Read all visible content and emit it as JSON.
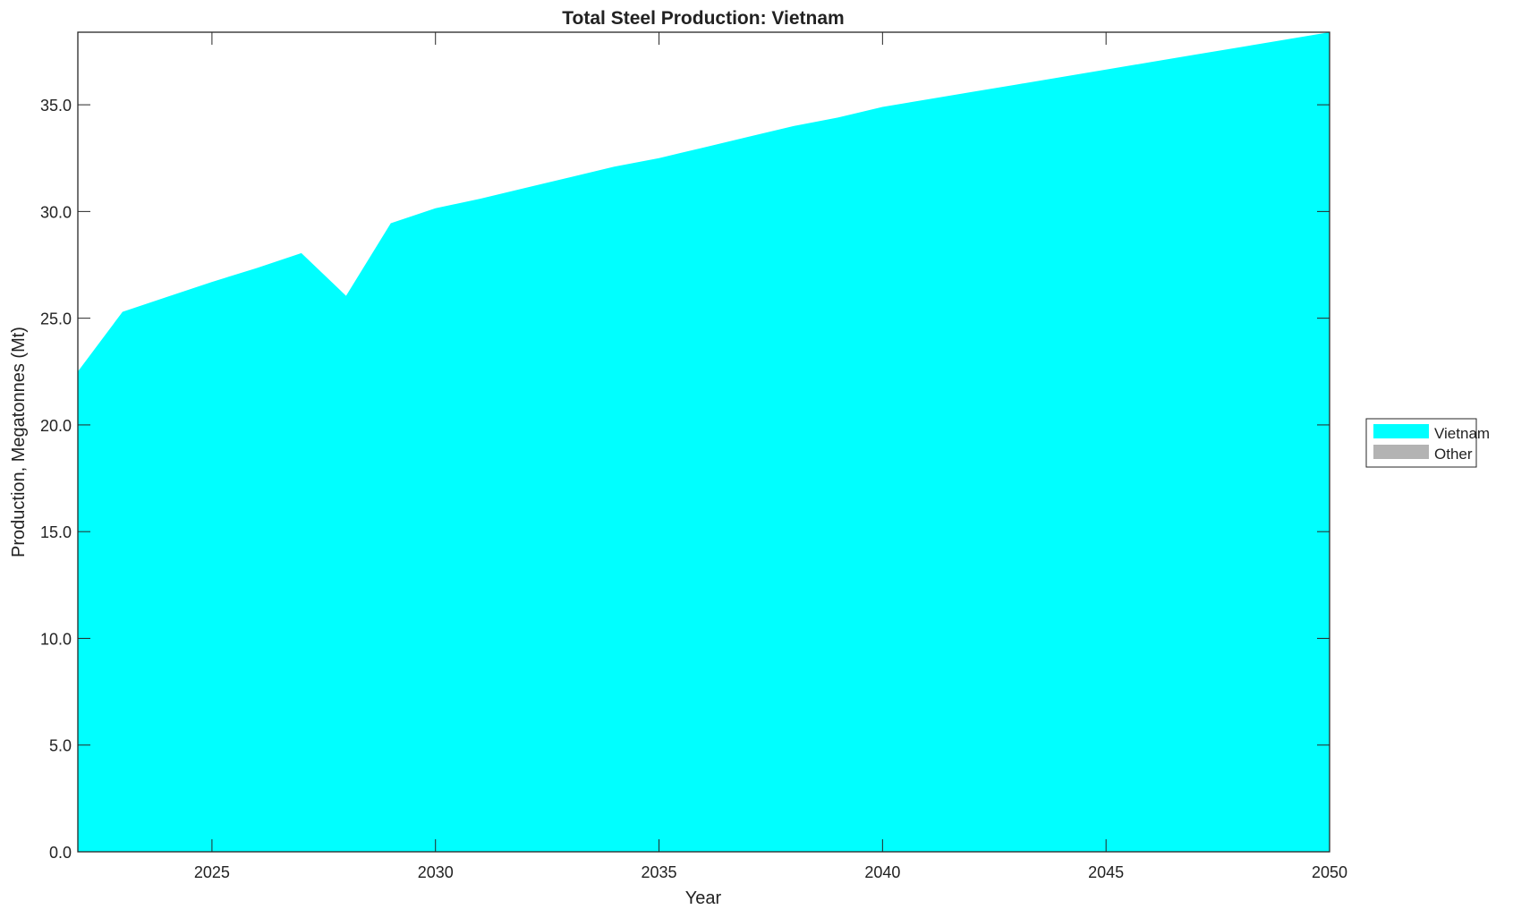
{
  "chart_data": {
    "type": "area",
    "title": "Total Steel Production: Vietnam",
    "xlabel": "Year",
    "ylabel": "Production, Megatonnes (Mt)",
    "xlim": [
      2022,
      2050
    ],
    "ylim": [
      0,
      38.4
    ],
    "xticks": [
      2025,
      2030,
      2035,
      2040,
      2045,
      2050
    ],
    "yticks": [
      "0.0",
      "5.0",
      "10.0",
      "15.0",
      "20.0",
      "25.0",
      "30.0",
      "35.0"
    ],
    "grid": false,
    "legend_position": "right",
    "x": [
      2022,
      2023,
      2024,
      2025,
      2026,
      2027,
      2028,
      2029,
      2030,
      2031,
      2032,
      2033,
      2034,
      2035,
      2036,
      2037,
      2038,
      2039,
      2040,
      2041,
      2042,
      2043,
      2044,
      2045,
      2046,
      2047,
      2048,
      2049,
      2050
    ],
    "series": [
      {
        "name": "Vietnam",
        "color": "#00ffff",
        "values": [
          22.5,
          25.3,
          26.0,
          26.7,
          27.35,
          28.05,
          26.05,
          29.45,
          30.15,
          30.6,
          31.1,
          31.6,
          32.1,
          32.5,
          33.0,
          33.5,
          34.0,
          34.4,
          34.9,
          35.25,
          35.6,
          35.95,
          36.3,
          36.65,
          37.0,
          37.35,
          37.7,
          38.05,
          38.4
        ]
      },
      {
        "name": "Other",
        "color": "#b3b3b3",
        "values": [
          0,
          0,
          0,
          0,
          0,
          0,
          0,
          0,
          0,
          0,
          0,
          0,
          0,
          0,
          0,
          0,
          0,
          0,
          0,
          0,
          0,
          0,
          0,
          0,
          0,
          0,
          0,
          0,
          0
        ]
      }
    ]
  }
}
